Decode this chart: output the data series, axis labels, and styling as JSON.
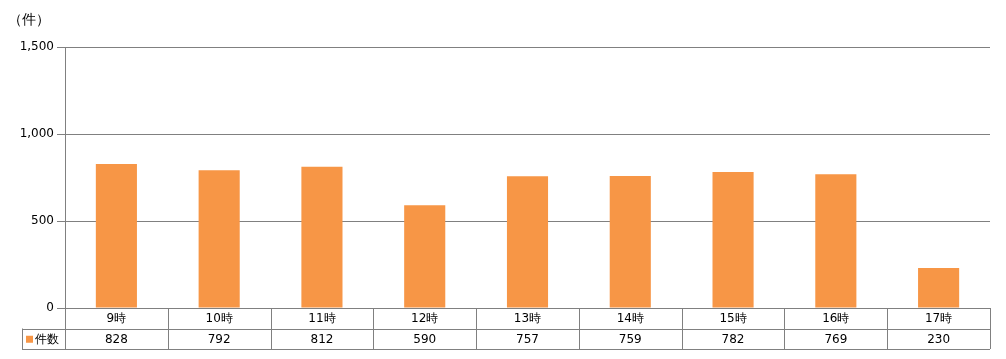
{
  "chart_data": {
    "type": "bar",
    "ylabel": "（件）",
    "categories": [
      "9時",
      "10時",
      "11時",
      "12時",
      "13時",
      "14時",
      "15時",
      "16時",
      "17時"
    ],
    "series": [
      {
        "name": "件数",
        "color": "#f79646",
        "values": [
          828,
          792,
          812,
          590,
          757,
          759,
          782,
          769,
          230
        ]
      }
    ],
    "ylim": [
      0,
      1500
    ],
    "yticks": [
      0,
      {
        "value": 500,
        "label": "500"
      },
      {
        "value": 1000,
        "label": "1,000"
      },
      {
        "value": 1500,
        "label": "1,500"
      }
    ],
    "grid": "y",
    "legend": "bottom",
    "data_labels": true
  }
}
